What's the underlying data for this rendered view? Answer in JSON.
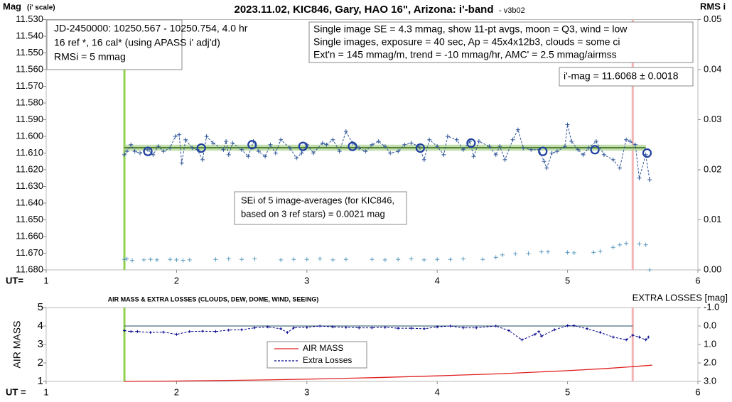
{
  "chart_data": [
    {
      "type": "scatter",
      "title": "2023.11.02, KIC846, Gary, HAO 16\", Arizona: i'-band",
      "title_suffix": "- v3b02",
      "ylabel": "Mag",
      "ylabel_note": "(i' scale)",
      "y2label": "RMS i",
      "xlabel": "UT=",
      "xlim": [
        1,
        6
      ],
      "xticks": [
        1,
        2,
        3,
        4,
        5,
        6
      ],
      "ylim": [
        11.53,
        11.68
      ],
      "y_inverted": true,
      "yticks": [
        {
          "value": 11.53,
          "label": "11.530"
        },
        {
          "value": 11.54,
          "label": "11.540"
        },
        {
          "value": 11.55,
          "label": "11.550"
        },
        {
          "value": 11.56,
          "label": "11.560"
        },
        {
          "value": 11.57,
          "label": "11.570"
        },
        {
          "value": 11.58,
          "label": "11.580"
        },
        {
          "value": 11.59,
          "label": "11.590"
        },
        {
          "value": 11.6,
          "label": "11.600"
        },
        {
          "value": 11.61,
          "label": "11.610"
        },
        {
          "value": 11.62,
          "label": "11.620"
        },
        {
          "value": 11.63,
          "label": "11.630"
        },
        {
          "value": 11.64,
          "label": "11.640"
        },
        {
          "value": 11.65,
          "label": "11.650"
        },
        {
          "value": 11.66,
          "label": "11.660"
        },
        {
          "value": 11.67,
          "label": "11.670"
        },
        {
          "value": 11.68,
          "label": "11.680"
        }
      ],
      "y2lim": [
        0,
        0.05
      ],
      "y2ticks": [
        {
          "value": 0,
          "label": "0.00"
        },
        0.01,
        0.02,
        0.03,
        0.04,
        0.05
      ],
      "series": [
        {
          "color": "#2f5597",
          "marker": "plus",
          "line": "dashed",
          "x": [
            1.6,
            1.62,
            1.65,
            1.68,
            1.72,
            1.78,
            1.82,
            1.86,
            1.9,
            1.95,
            1.99,
            2.02,
            2.04,
            2.07,
            2.12,
            2.16,
            2.2,
            2.23,
            2.28,
            2.36,
            2.38,
            2.4,
            2.43,
            2.5,
            2.55,
            2.59,
            2.63,
            2.68,
            2.72,
            2.76,
            2.8,
            2.87,
            2.92,
            2.96,
            3.0,
            3.05,
            3.12,
            3.15,
            3.2,
            3.25,
            3.3,
            3.35,
            3.4,
            3.45,
            3.5,
            3.55,
            3.6,
            3.64,
            3.7,
            3.75,
            3.8,
            3.86,
            3.9,
            3.94,
            4.0,
            4.05,
            4.08,
            4.15,
            4.2,
            4.25,
            4.28,
            4.32,
            4.4,
            4.45,
            4.48,
            4.52,
            4.58,
            4.62,
            4.66,
            4.72,
            4.78,
            4.82,
            4.84,
            4.88,
            4.92,
            4.98,
            5.0,
            5.03,
            5.08,
            5.12,
            5.16,
            5.22,
            5.28,
            5.35,
            5.4,
            5.45,
            5.48,
            5.52,
            5.55,
            5.6,
            5.63
          ],
          "values": [
            11.611,
            11.609,
            11.605,
            11.609,
            11.61,
            11.608,
            11.611,
            11.606,
            11.609,
            11.607,
            11.6,
            11.599,
            11.616,
            11.602,
            11.607,
            11.608,
            11.614,
            11.6,
            11.604,
            11.608,
            11.603,
            11.611,
            11.604,
            11.608,
            11.612,
            11.603,
            11.609,
            11.612,
            11.605,
            11.61,
            11.602,
            11.607,
            11.613,
            11.61,
            11.605,
            11.61,
            11.604,
            11.605,
            11.602,
            11.609,
            11.597,
            11.604,
            11.607,
            11.609,
            11.605,
            11.603,
            11.606,
            11.61,
            11.609,
            11.605,
            11.604,
            11.606,
            11.614,
            11.602,
            11.606,
            11.611,
            11.6,
            11.602,
            11.608,
            11.603,
            11.612,
            11.603,
            11.606,
            11.611,
            11.606,
            11.614,
            11.602,
            11.596,
            11.607,
            11.608,
            11.608,
            11.615,
            11.619,
            11.61,
            11.609,
            11.606,
            11.593,
            11.603,
            11.608,
            11.611,
            11.607,
            11.603,
            11.611,
            11.614,
            11.619,
            11.602,
            11.603,
            11.605,
            11.625,
            11.611,
            11.626
          ]
        },
        {
          "color": "#1f3fa0",
          "marker": "circle",
          "x": [
            1.78,
            2.19,
            2.58,
            2.97,
            3.35,
            3.87,
            4.26,
            4.81,
            5.21,
            5.61
          ],
          "values": [
            11.609,
            11.607,
            11.605,
            11.606,
            11.606,
            11.607,
            11.604,
            11.609,
            11.608,
            11.61
          ]
        },
        {
          "color": "#5b9bbd",
          "marker": "plus",
          "axis": "y2",
          "x": [
            1.6,
            1.62,
            1.66,
            1.75,
            1.8,
            1.85,
            1.95,
            2.0,
            2.05,
            2.1,
            2.3,
            2.4,
            2.5,
            2.6,
            2.8,
            2.9,
            3.0,
            3.1,
            3.2,
            3.3,
            3.5,
            3.6,
            3.7,
            3.8,
            3.9,
            4.0,
            4.1,
            4.2,
            4.35,
            4.45,
            4.5,
            4.6,
            4.7,
            4.8,
            4.85,
            5.0,
            5.05,
            5.2,
            5.25,
            5.35,
            5.4,
            5.45,
            5.55,
            5.6,
            5.63
          ],
          "values": [
            0.0021,
            0.0022,
            0.0019,
            0.002,
            0.0021,
            0.002,
            0.0021,
            0.002,
            0.0019,
            0.002,
            0.0021,
            0.0022,
            0.0021,
            0.0022,
            0.002,
            0.0021,
            0.0021,
            0.0022,
            0.002,
            0.0021,
            0.0021,
            0.002,
            0.0021,
            0.0022,
            0.002,
            0.0021,
            0.0021,
            0.0022,
            0.0021,
            0.0025,
            0.003,
            0.0032,
            0.0033,
            0.0036,
            0.0036,
            0.0035,
            0.0034,
            0.0035,
            0.0037,
            0.0045,
            0.005,
            0.0053,
            0.0052,
            0.005,
            0
          ]
        }
      ],
      "mean": {
        "value": 11.6068,
        "error": 0.0018,
        "x": [
          1.6,
          5.6
        ],
        "color": "#548235"
      },
      "vlines": [
        {
          "x": 1.6,
          "color": "#92d050"
        },
        {
          "x": 5.5,
          "color": "#f4b4b4"
        }
      ],
      "annotations": [
        {
          "lines": [
            "JD-2450000: 10250.567 - 10250.754, 4.0  hr",
            "16 ref *, 16 cal* (using APASS i' adj'd)",
            "RMSi = 5 mmag"
          ]
        },
        {
          "lines": [
            "Single image SE = 4.3 mmag, show 11-pt avgs, moon = Q3, wind = low",
            "Single images, exposure = 40 sec, Ap = 45x4x12b3, clouds = some ci",
            "Ext'n = 145 mmag/m, trend = -10 mmag/hr, AMC' = 2.5 mmag/airmss"
          ]
        },
        {
          "lines": [
            "i'-mag = 11.6068 ± 0.0018"
          ]
        },
        {
          "lines": [
            "SEi of 5 image-averages (for KIC846,",
            "based on 3 ref stars) = 0.0021 mag"
          ]
        }
      ]
    },
    {
      "type": "line",
      "title": "AIR MASS & EXTRA LOSSES (CLOUDS, DEW, DOME, WIND, SEEING)",
      "ylabel": "AIR MASS",
      "y2label": "EXTRA LOSSES [mag]",
      "xlabel": "UT =",
      "xlim": [
        1,
        6
      ],
      "xticks": [
        1,
        2,
        3,
        4,
        5,
        6
      ],
      "ylim": [
        1,
        5
      ],
      "yticks": [
        1,
        2,
        3,
        4,
        5
      ],
      "y2lim": [
        -1,
        3
      ],
      "y2_inverted": true,
      "y2ticks": [
        {
          "value": -1,
          "label": "-1.0"
        },
        {
          "value": 0,
          "label": "0.0"
        },
        {
          "value": 1,
          "label": "1.0"
        },
        {
          "value": 2,
          "label": "2.0"
        },
        {
          "value": 3,
          "label": "3.0"
        }
      ],
      "series": [
        {
          "name": "AIR MASS",
          "color": "#e02020",
          "x": [
            1.6,
            2.0,
            2.5,
            3.0,
            3.5,
            4.0,
            4.5,
            5.0,
            5.3,
            5.5,
            5.65
          ],
          "values": [
            1.0,
            1.02,
            1.06,
            1.12,
            1.2,
            1.3,
            1.42,
            1.58,
            1.7,
            1.8,
            1.88
          ]
        },
        {
          "name": "Extra Losses",
          "color": "#00008b",
          "axis": "y2",
          "line": "dashed",
          "marker": "plus",
          "x": [
            1.6,
            1.65,
            1.7,
            1.8,
            1.9,
            2.0,
            2.1,
            2.2,
            2.3,
            2.4,
            2.5,
            2.6,
            2.7,
            2.8,
            2.85,
            2.9,
            3.0,
            3.1,
            3.2,
            3.3,
            3.4,
            3.5,
            3.6,
            3.7,
            3.8,
            3.9,
            4.0,
            4.1,
            4.2,
            4.3,
            4.45,
            4.55,
            4.65,
            4.75,
            4.78,
            4.8,
            4.9,
            5.0,
            5.05,
            5.15,
            5.25,
            5.35,
            5.45,
            5.5,
            5.55,
            5.6,
            5.62
          ],
          "values": [
            0.25,
            0.3,
            0.3,
            0.35,
            0.33,
            0.45,
            0.3,
            0.28,
            0.3,
            0.22,
            0.2,
            0.1,
            0.05,
            0.15,
            0.35,
            0.1,
            0.07,
            0.0,
            0.05,
            0.07,
            0.1,
            0.1,
            0.07,
            0.12,
            0.12,
            0.15,
            0.05,
            0.0,
            0.1,
            0.1,
            0.0,
            0.25,
            0.75,
            0.45,
            0.3,
            0.55,
            0.2,
            -0.02,
            -0.02,
            0.15,
            0.35,
            0.6,
            0.75,
            0.5,
            0.6,
            0.75,
            0.6
          ]
        }
      ],
      "zero_line": {
        "value": 0,
        "x": [
          1.6,
          5.5
        ],
        "color": "#1f4e5f"
      },
      "vlines": [
        {
          "x": 1.6,
          "color": "#92d050"
        },
        {
          "x": 5.5,
          "color": "#f4b4b4"
        }
      ]
    }
  ]
}
